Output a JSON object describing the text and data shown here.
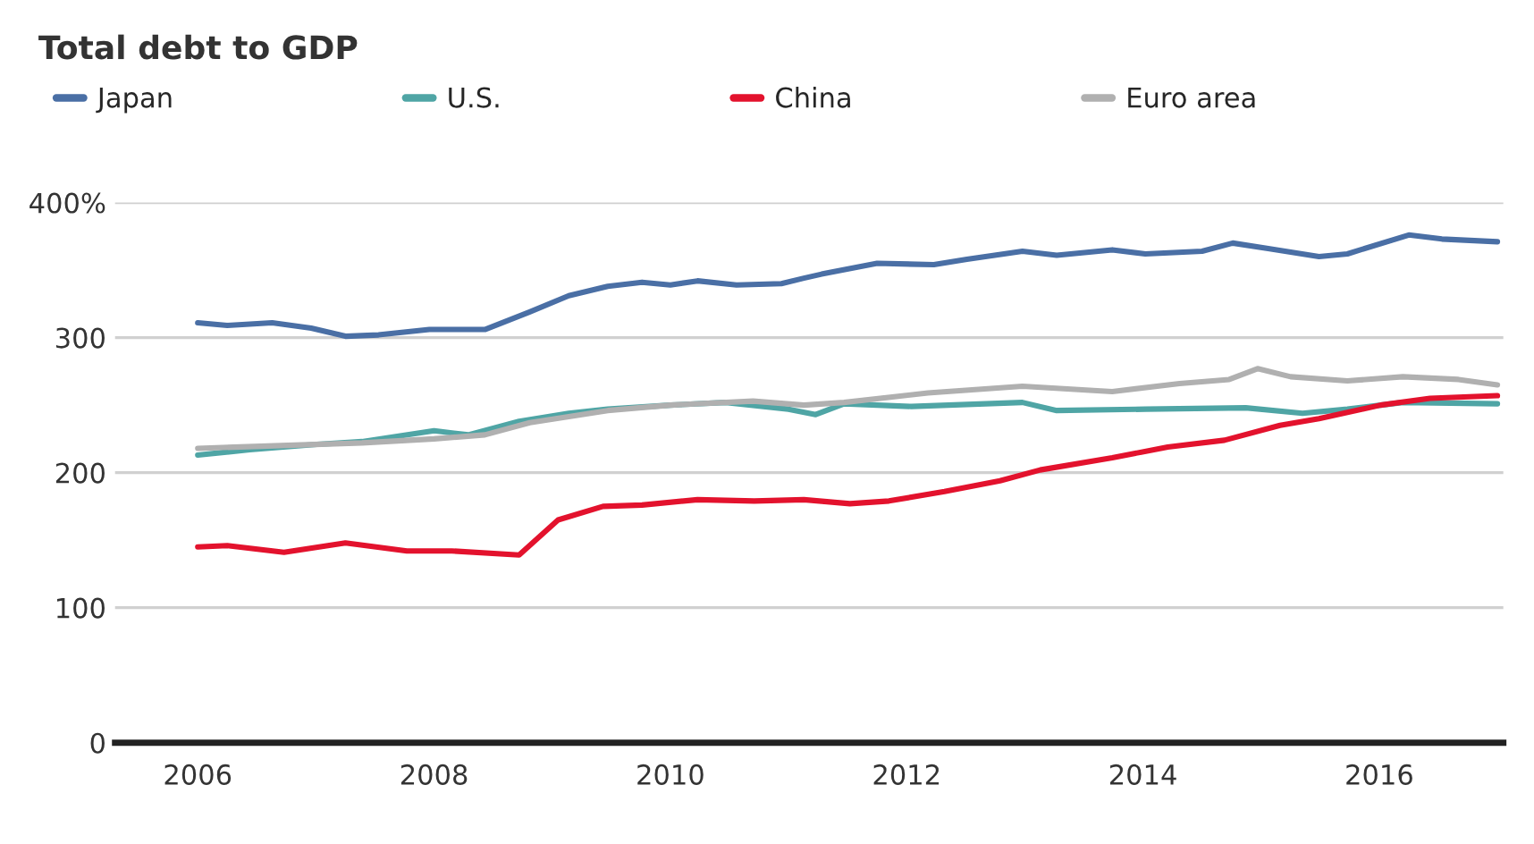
{
  "chart_data": {
    "type": "line",
    "title": "Total debt to GDP",
    "xlim": [
      2005.3,
      2017.05
    ],
    "xticks": [
      2006,
      2008,
      2010,
      2012,
      2014,
      2016
    ],
    "ylim": [
      0,
      400
    ],
    "yticks": [
      0,
      100,
      200,
      300,
      {
        "value": 400,
        "label": "400%"
      }
    ],
    "grid": "y",
    "legend": "top left",
    "line_style": "solid",
    "series": [
      {
        "name": "Japan",
        "color": "#4a6fa5",
        "x": [
          2006.0,
          2006.25,
          2006.63,
          2006.96,
          2007.25,
          2007.53,
          2007.96,
          2008.43,
          2008.81,
          2009.14,
          2009.47,
          2009.76,
          2010.0,
          2010.23,
          2010.56,
          2010.94,
          2011.13,
          2011.28,
          2011.75,
          2012.23,
          2012.51,
          2012.98,
          2013.27,
          2013.74,
          2014.02,
          2014.5,
          2014.76,
          2015.06,
          2015.49,
          2015.73,
          2016.25,
          2016.53,
          2017.0
        ],
        "values": [
          311,
          309,
          311,
          307,
          301,
          302,
          306,
          306,
          319,
          331,
          338,
          341,
          339,
          342,
          339,
          340,
          344,
          347,
          355,
          354,
          358,
          364,
          361,
          365,
          362,
          364,
          370,
          366,
          360,
          362,
          376,
          373,
          371
        ]
      },
      {
        "name": "U.S.",
        "color": "#4fa5a5",
        "x": [
          2006.0,
          2006.44,
          2007.01,
          2007.39,
          2008.0,
          2008.29,
          2008.72,
          2009.14,
          2009.47,
          2010.0,
          2010.47,
          2011.0,
          2011.23,
          2011.47,
          2012.04,
          2012.98,
          2013.27,
          2014.02,
          2014.87,
          2015.35,
          2015.73,
          2016.2,
          2017.0
        ],
        "values": [
          213,
          217,
          221,
          223,
          231,
          228,
          238,
          244,
          247,
          250,
          252,
          247,
          243,
          251,
          249,
          252,
          246,
          247,
          248,
          244,
          247,
          252,
          251
        ]
      },
      {
        "name": "China",
        "color": "#e3122d",
        "x": [
          2006.0,
          2006.25,
          2006.73,
          2007.25,
          2007.77,
          2008.15,
          2008.72,
          2009.05,
          2009.43,
          2009.76,
          2010.23,
          2010.71,
          2011.13,
          2011.52,
          2011.85,
          2012.32,
          2012.79,
          2013.13,
          2013.74,
          2014.21,
          2014.69,
          2015.16,
          2015.49,
          2016.01,
          2016.43,
          2017.0
        ],
        "values": [
          145,
          146,
          141,
          148,
          142,
          142,
          139,
          165,
          175,
          176,
          180,
          179,
          180,
          177,
          179,
          186,
          194,
          202,
          211,
          219,
          224,
          235,
          240,
          250,
          255,
          257
        ]
      },
      {
        "name": "Euro area",
        "color": "#b0b0b0",
        "x": [
          2006.0,
          2007.39,
          2008.0,
          2008.43,
          2008.81,
          2009.47,
          2010.0,
          2010.7,
          2011.13,
          2011.47,
          2012.18,
          2012.98,
          2013.74,
          2014.31,
          2014.73,
          2014.97,
          2015.25,
          2015.73,
          2016.2,
          2016.67,
          2017.0
        ],
        "values": [
          218,
          222,
          225,
          228,
          237,
          246,
          250,
          253,
          250,
          252,
          259,
          264,
          260,
          266,
          269,
          277,
          271,
          268,
          271,
          269,
          265
        ]
      }
    ]
  }
}
